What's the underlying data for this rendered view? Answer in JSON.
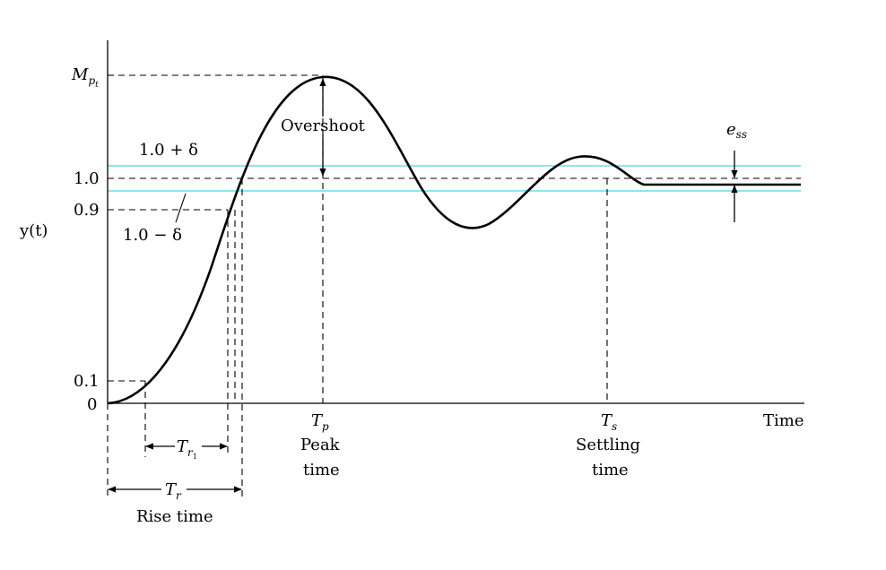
{
  "y_axis": {
    "label": "y(t)",
    "ticks": {
      "mp": "M",
      "mp_sub": "p",
      "mp_subsub": "t",
      "upper_band": "1.0 + δ",
      "one": "1.0",
      "ninety": "0.9",
      "lower_band": "1.0 − δ",
      "ten": "0.1",
      "zero": "0"
    }
  },
  "x_axis": {
    "label": "Time"
  },
  "annotations": {
    "overshoot": "Overshoot",
    "ess": "e",
    "ess_sub": "ss",
    "tp": "T",
    "tp_sub": "p",
    "peak_line1": "Peak",
    "peak_line2": "time",
    "ts": "T",
    "ts_sub": "s",
    "settling_line1": "Settling",
    "settling_line2": "time",
    "tr1": "T",
    "tr1_sub": "r",
    "tr1_subsub": "1",
    "tr": "T",
    "tr_sub": "r",
    "rise_time": "Rise time"
  },
  "colors": {
    "curve": "#000000",
    "band": "#5fe0e8",
    "axis": "#000000"
  }
}
